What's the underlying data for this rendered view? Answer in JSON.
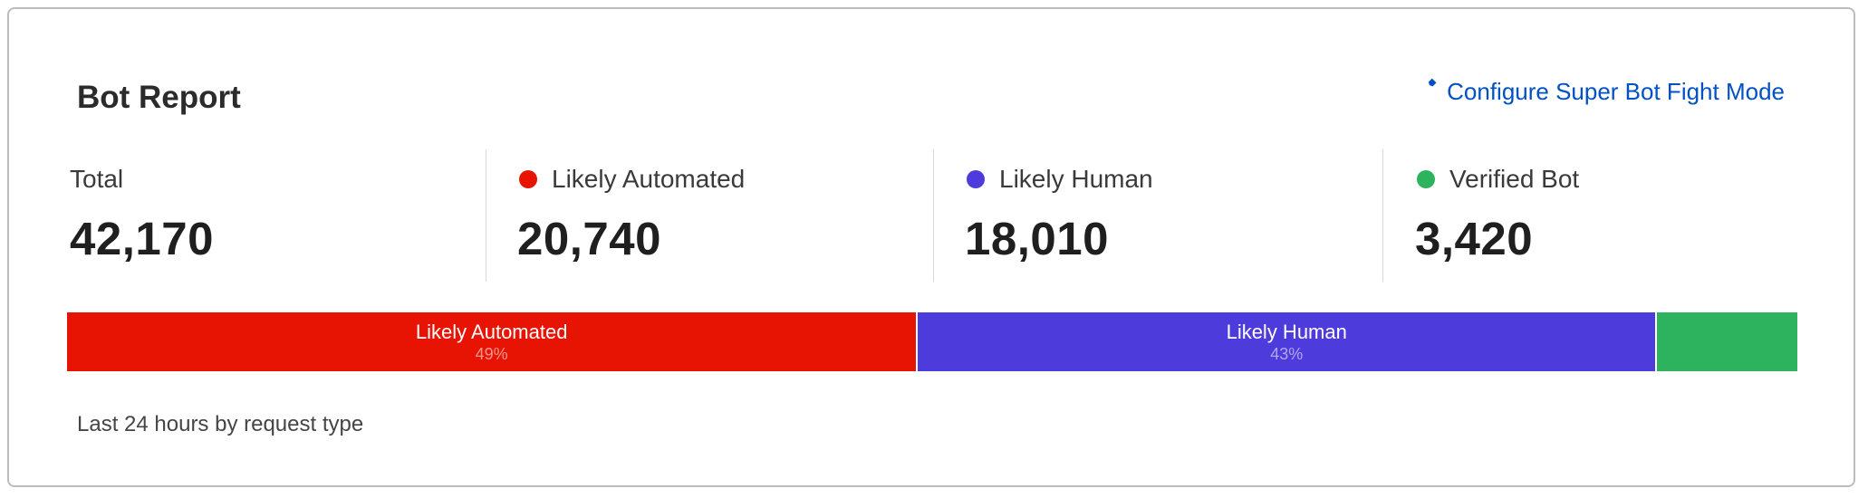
{
  "card": {
    "title": "Bot Report",
    "configure_link": {
      "label": "Configure Super Bot Fight Mode",
      "icon": "wrench-icon",
      "color": "#0051c3"
    },
    "stats": [
      {
        "label": "Total",
        "value": "42,170"
      },
      {
        "label": "Likely Automated",
        "value": "20,740",
        "color": "#e81403"
      },
      {
        "label": "Likely Human",
        "value": "18,010",
        "color": "#4e3bdc"
      },
      {
        "label": "Verified Bot",
        "value": "3,420",
        "color": "#2db35d"
      }
    ],
    "bar": {
      "segments": [
        {
          "label": "Likely Automated",
          "percent_label": "49%",
          "value": 20740,
          "color": "#e81403"
        },
        {
          "label": "Likely Human",
          "percent_label": "43%",
          "value": 18010,
          "color": "#4e3bdc"
        },
        {
          "value": 3420,
          "color": "#2db35d"
        }
      ]
    },
    "footer": "Last 24 hours by request type"
  }
}
